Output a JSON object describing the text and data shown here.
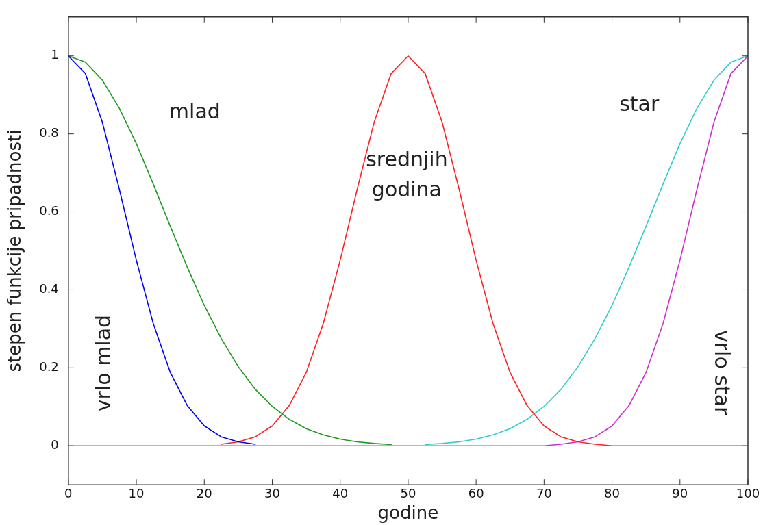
{
  "chart_data": {
    "type": "line",
    "xlabel": "godine",
    "ylabel": "stepen funkcije pripadnosti",
    "x": [
      0,
      2.5,
      5,
      7.5,
      10,
      12.5,
      15,
      17.5,
      20,
      22.5,
      25,
      27.5,
      30,
      32.5,
      35,
      37.5,
      40,
      42.5,
      45,
      47.5,
      50,
      52.5,
      55,
      57.5,
      60,
      62.5,
      65,
      67.5,
      70,
      72.5,
      75,
      77.5,
      80,
      82.5,
      85,
      87.5,
      90,
      92.5,
      95,
      97.5,
      100
    ],
    "series": [
      {
        "color": "#0000ff",
        "values": [
          1,
          0.955,
          0.83,
          0.658,
          0.476,
          0.313,
          0.188,
          0.103,
          0.051,
          0.023,
          0.01,
          0.004,
          null,
          null,
          null,
          null,
          null,
          null,
          null,
          null,
          null,
          null,
          null,
          null,
          null,
          null,
          null,
          null,
          null,
          null,
          null,
          null,
          null,
          null,
          null,
          null,
          null,
          null,
          null,
          null,
          null
        ]
      },
      {
        "color": "#1e9a1e",
        "values": [
          1,
          0.984,
          0.938,
          0.866,
          0.775,
          0.671,
          0.563,
          0.458,
          0.36,
          0.275,
          0.203,
          0.145,
          0.101,
          0.068,
          0.044,
          0.028,
          0.017,
          0.01,
          0.006,
          0.003,
          null,
          null,
          null,
          null,
          null,
          null,
          null,
          null,
          null,
          null,
          null,
          null,
          null,
          null,
          null,
          null,
          null,
          null,
          null,
          null,
          null
        ]
      },
      {
        "color": "#ff2020",
        "values": [
          null,
          null,
          null,
          null,
          null,
          null,
          null,
          null,
          null,
          0.004,
          0.01,
          0.023,
          0.051,
          0.103,
          0.188,
          0.313,
          0.476,
          0.658,
          0.83,
          0.955,
          1,
          0.955,
          0.83,
          0.658,
          0.476,
          0.313,
          0.188,
          0.103,
          0.051,
          0.023,
          0.01,
          0.004,
          0,
          0,
          0,
          0,
          0,
          0,
          0,
          0,
          0
        ]
      },
      {
        "color": "#30cccc",
        "values": [
          null,
          null,
          null,
          null,
          null,
          null,
          null,
          null,
          null,
          null,
          null,
          null,
          null,
          null,
          null,
          null,
          null,
          null,
          null,
          null,
          null,
          0.003,
          0.006,
          0.01,
          0.017,
          0.028,
          0.044,
          0.068,
          0.101,
          0.145,
          0.203,
          0.275,
          0.36,
          0.458,
          0.563,
          0.671,
          0.775,
          0.866,
          0.938,
          0.984,
          1
        ]
      },
      {
        "color": "#cc30cc",
        "values": [
          0,
          0,
          0,
          0,
          0,
          0,
          0,
          0,
          0,
          0,
          0,
          0,
          0,
          0,
          0,
          0,
          0,
          0,
          0,
          0,
          0,
          0,
          0,
          0,
          0,
          0,
          0,
          0,
          0,
          0.004,
          0.01,
          0.023,
          0.051,
          0.103,
          0.188,
          0.313,
          0.476,
          0.658,
          0.83,
          0.955,
          1
        ]
      }
    ],
    "xlim": [
      0,
      100
    ],
    "ylim": [
      -0.1,
      1.1
    ],
    "xticks": [
      0,
      10,
      20,
      30,
      40,
      50,
      60,
      70,
      80,
      90,
      100
    ],
    "yticks": [
      0,
      0.2,
      0.4,
      0.6,
      0.8,
      1
    ],
    "annotations": [
      "mlad",
      "vrlo mlad",
      "srednjih godina",
      "star",
      "vrlo star"
    ],
    "grid": false,
    "legend": false,
    "marker": "none",
    "line_style": "solid"
  }
}
